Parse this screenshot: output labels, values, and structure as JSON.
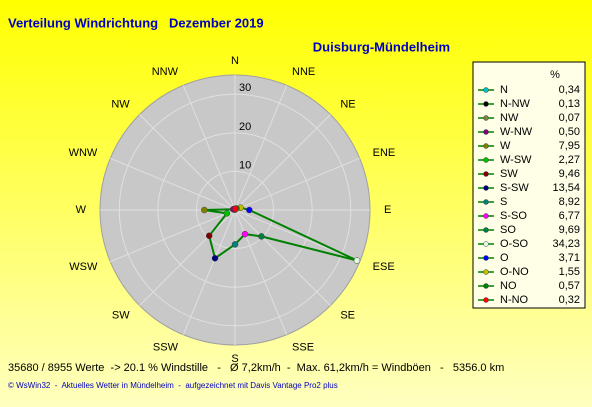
{
  "chart_data": {
    "type": "radar",
    "title": "Verteilung Windrichtung   Dezember 2019",
    "subtitle": "Duisburg-Mündelheim",
    "axis_labels": [
      "N",
      "NNE",
      "NE",
      "ENE",
      "E",
      "ESE",
      "SE",
      "SSE",
      "S",
      "SSW",
      "SW",
      "WSW",
      "W",
      "WNW",
      "NW",
      "NNW"
    ],
    "rlim": [
      0,
      35
    ],
    "rticks": [
      10,
      20,
      30
    ],
    "line_color": "#008000",
    "legend_header": "%",
    "directions": [
      {
        "name": "N",
        "color": "#00c0c0",
        "value": 0.34,
        "value_label": "0,34"
      },
      {
        "name": "N-NW",
        "color": "#000000",
        "value": 0.13,
        "value_label": "0,13"
      },
      {
        "name": "NW",
        "color": "#808040",
        "value": 0.07,
        "value_label": "0,07"
      },
      {
        "name": "W-NW",
        "color": "#800080",
        "value": 0.5,
        "value_label": "0,50"
      },
      {
        "name": "W",
        "color": "#808000",
        "value": 7.95,
        "value_label": "7,95"
      },
      {
        "name": "W-SW",
        "color": "#00c000",
        "value": 2.27,
        "value_label": "2,27"
      },
      {
        "name": "SW",
        "color": "#800000",
        "value": 9.46,
        "value_label": "9,46"
      },
      {
        "name": "S-SW",
        "color": "#000080",
        "value": 13.54,
        "value_label": "13,54"
      },
      {
        "name": "S",
        "color": "#008080",
        "value": 8.92,
        "value_label": "8,92"
      },
      {
        "name": "S-SO",
        "color": "#ff00ff",
        "value": 6.77,
        "value_label": "6,77"
      },
      {
        "name": "SO",
        "color": "#008040",
        "value": 9.69,
        "value_label": "9,69"
      },
      {
        "name": "O-SO",
        "color": "#e0ffe0",
        "value": 34.23,
        "value_label": "34,23"
      },
      {
        "name": "O",
        "color": "#0000ff",
        "value": 3.71,
        "value_label": "3,71"
      },
      {
        "name": "O-NO",
        "color": "#c0c000",
        "value": 1.55,
        "value_label": "1,55"
      },
      {
        "name": "NO",
        "color": "#008000",
        "value": 0.57,
        "value_label": "0,57"
      },
      {
        "name": "N-NO",
        "color": "#ff0000",
        "value": 0.32,
        "value_label": "0,32"
      }
    ],
    "footer": "35680 / 8955 Werte  -> 20.1 % Windstille   -   Ø 7,2km/h  -  Max. 61,2km/h = Windböen   -   5356.0 km",
    "credits": "© WsWin32  -  Aktuelles Wetter in Mündelheim  -  aufgezeichnet mit Davis Vantage Pro2 plus"
  }
}
